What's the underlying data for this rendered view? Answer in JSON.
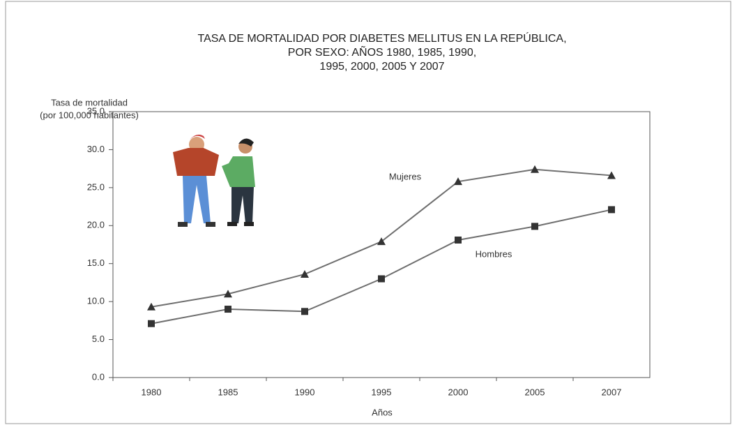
{
  "chart_data": {
    "type": "line",
    "title": [
      "TASA DE MORTALIDAD POR DIABETES MELLITUS EN LA REPÚBLICA,",
      "POR SEXO: AÑOS 1980, 1985, 1990,",
      "1995, 2000, 2005 Y 2007"
    ],
    "y_label": [
      "Tasa de mortalidad",
      "(por 100,000 habitantes)"
    ],
    "x_label": "Años",
    "categories": [
      "1980",
      "1985",
      "1990",
      "1995",
      "2000",
      "2005",
      "2007"
    ],
    "series": [
      {
        "name": "Mujeres",
        "color": "#6e6e6e",
        "marker": "triangle",
        "values": [
          9.3,
          11.0,
          13.6,
          17.9,
          25.8,
          27.4,
          26.6
        ]
      },
      {
        "name": "Hombres",
        "color": "#6e6e6e",
        "marker": "square",
        "values": [
          7.1,
          9.0,
          8.7,
          13.0,
          18.1,
          19.9,
          22.1
        ]
      }
    ],
    "ylim": [
      0,
      35
    ],
    "yticks": [
      {
        "value": 0,
        "label": "0.0"
      },
      {
        "value": 5,
        "label": "5.0"
      },
      {
        "value": 10,
        "label": "10.0"
      },
      {
        "value": 15,
        "label": "15.0"
      },
      {
        "value": 20,
        "label": "20.0"
      },
      {
        "value": 25,
        "label": "25.0"
      },
      {
        "value": 30,
        "label": "30.0"
      },
      {
        "value": 35,
        "label": "35.0"
      }
    ],
    "grid": false
  }
}
